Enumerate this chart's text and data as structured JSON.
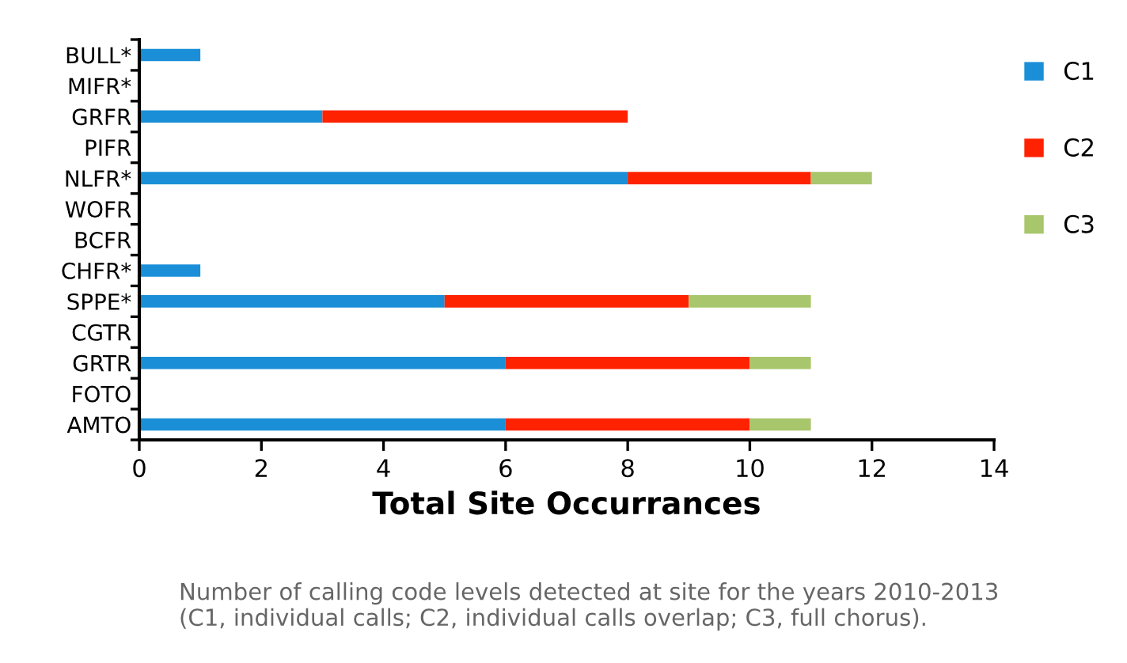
{
  "chart_data": {
    "type": "bar",
    "orientation": "horizontal",
    "stacked": true,
    "xlabel": "Total Site Occurrances",
    "categories": [
      "BULL*",
      "MIFR*",
      "GRFR",
      "PIFR",
      "NLFR*",
      "WOFR",
      "BCFR",
      "CHFR*",
      "SPPE*",
      "CGTR",
      "GRTR",
      "FOTO",
      "AMTO"
    ],
    "series": [
      {
        "name": "C1",
        "color": "#1a8fd8",
        "values": [
          1,
          0,
          3,
          0,
          8,
          0,
          0,
          1,
          5,
          0,
          6,
          0,
          6
        ]
      },
      {
        "name": "C2",
        "color": "#ff2200",
        "values": [
          0,
          0,
          5,
          0,
          3,
          0,
          0,
          0,
          4,
          0,
          4,
          0,
          4
        ]
      },
      {
        "name": "C3",
        "color": "#a8c66c",
        "values": [
          0,
          0,
          0,
          0,
          1,
          0,
          0,
          0,
          2,
          0,
          1,
          0,
          1
        ]
      }
    ],
    "xlim": [
      0,
      14
    ],
    "xticks": [
      0,
      2,
      4,
      6,
      8,
      10,
      12,
      14
    ],
    "grid": false,
    "legend": "right",
    "annotations": [
      "Number of calling code levels detected at site for the years 2010-2013\n(C1, individual calls; C2, individual calls overlap; C3, full chorus)."
    ]
  }
}
